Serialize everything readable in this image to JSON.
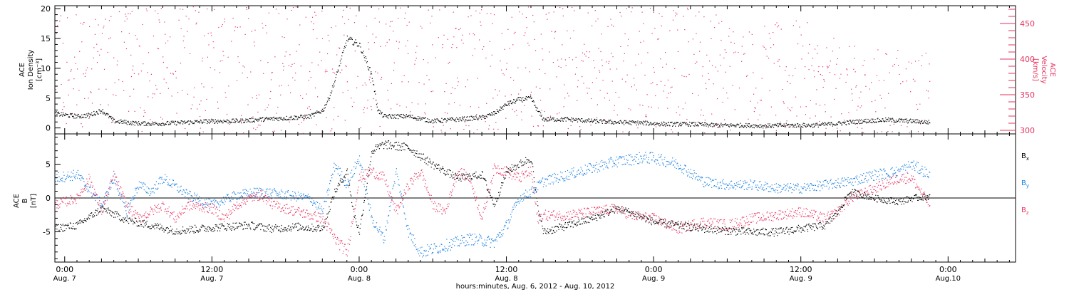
{
  "colors": {
    "black": "#000000",
    "red": "#e8325f",
    "blue": "#1a7fe0"
  },
  "xaxis": {
    "tick_labels": [
      {
        "time": "0:00",
        "date": "Aug. 7",
        "hours": 0
      },
      {
        "time": "12:00",
        "date": "Aug. 7",
        "hours": 12
      },
      {
        "time": "0:00",
        "date": "Aug. 8",
        "hours": 24
      },
      {
        "time": "12:00",
        "date": "Aug. 8",
        "hours": 36
      },
      {
        "time": "0:00",
        "date": "Aug. 9",
        "hours": 48
      },
      {
        "time": "12:00",
        "date": "Aug. 9",
        "hours": 60
      },
      {
        "time": "0:00",
        "date": "Aug.10",
        "hours": 72
      }
    ],
    "title": "hours:minutes, Aug. 6, 2012 - Aug. 10, 2012",
    "range_hours": [
      -0.8,
      77.5
    ]
  },
  "top_panel": {
    "left_label": {
      "line1": "ACE",
      "line2": "Ion Density",
      "line3": "[cm⁻³]"
    },
    "right_label": {
      "line1": "ACE",
      "line2": "Velocity",
      "line3": "[km/s]"
    },
    "left_ticks": [
      "0",
      "5",
      "10",
      "15",
      "20"
    ],
    "right_ticks": [
      "300",
      "350",
      "400",
      "450"
    ]
  },
  "bottom_panel": {
    "left_label": {
      "line1": "ACE",
      "line2": "B",
      "line3": "[nT]"
    },
    "left_ticks": [
      "-5",
      "0",
      "5"
    ],
    "legend": [
      {
        "sym": "B",
        "sub": "x",
        "color": "#000000"
      },
      {
        "sym": "B",
        "sub": "y",
        "color": "#1a7fe0"
      },
      {
        "sym": "B",
        "sub": "z",
        "color": "#e8325f"
      }
    ]
  },
  "chart_data": [
    {
      "type": "scatter",
      "x_unit": "hours since 2012-08-07 00:00 UT",
      "xlim": [
        -0.8,
        77.5
      ],
      "ylim_left": [
        -1,
        20.5
      ],
      "ylim_right": [
        295,
        475
      ],
      "series": [
        {
          "name": "Ion Density",
          "axis": "left",
          "color": "#000000",
          "points": [
            [
              -1,
              2.5
            ],
            [
              1,
              2
            ],
            [
              2,
              2.2
            ],
            [
              3,
              3
            ],
            [
              4,
              1.2
            ],
            [
              6,
              0.8
            ],
            [
              8,
              0.8
            ],
            [
              10,
              1
            ],
            [
              12,
              1.2
            ],
            [
              14,
              1.2
            ],
            [
              16,
              1.5
            ],
            [
              18,
              1.7
            ],
            [
              20,
              2
            ],
            [
              21,
              3
            ],
            [
              21.5,
              5
            ],
            [
              22,
              8
            ],
            [
              23,
              15
            ],
            [
              24,
              14
            ],
            [
              25,
              9
            ],
            [
              25.5,
              3
            ],
            [
              26,
              2
            ],
            [
              28,
              2
            ],
            [
              30,
              1.2
            ],
            [
              32,
              1.5
            ],
            [
              34,
              1.8
            ],
            [
              35,
              2.5
            ],
            [
              36,
              4
            ],
            [
              37,
              4.8
            ],
            [
              38,
              5
            ],
            [
              38.5,
              3
            ],
            [
              39,
              1.5
            ],
            [
              41,
              1.5
            ],
            [
              43,
              1.2
            ],
            [
              45,
              1
            ],
            [
              47,
              0.9
            ],
            [
              49,
              0.7
            ],
            [
              51,
              0.7
            ],
            [
              53,
              0.5
            ],
            [
              55,
              0.5
            ],
            [
              57,
              0.4
            ],
            [
              59,
              0.5
            ],
            [
              61,
              0.5
            ],
            [
              63,
              0.8
            ],
            [
              65,
              1.2
            ],
            [
              67,
              1.4
            ],
            [
              69,
              1.2
            ],
            [
              70.5,
              1
            ]
          ]
        },
        {
          "name": "Velocity",
          "axis": "right",
          "color": "#e8325f",
          "points": [
            [
              -1,
              405
            ],
            [
              1,
              402
            ],
            [
              3,
              410
            ],
            [
              5,
              418
            ],
            [
              6,
              425
            ],
            [
              8,
              405
            ],
            [
              10,
              402
            ],
            [
              12,
              404
            ],
            [
              14,
              405
            ],
            [
              16,
              402
            ],
            [
              18,
              396
            ],
            [
              20,
              400
            ],
            [
              21,
              410
            ],
            [
              22,
              425
            ],
            [
              23,
              440
            ],
            [
              24,
              430
            ],
            [
              24.5,
              400
            ],
            [
              25,
              385
            ],
            [
              26,
              378
            ],
            [
              27,
              420
            ],
            [
              28,
              445
            ],
            [
              30,
              425
            ],
            [
              32,
              420
            ],
            [
              34,
              410
            ],
            [
              36,
              402
            ],
            [
              37,
              398
            ],
            [
              38,
              402
            ],
            [
              38.5,
              380
            ],
            [
              40,
              375
            ],
            [
              42,
              370
            ],
            [
              44,
              380
            ],
            [
              46,
              390
            ],
            [
              48,
              380
            ],
            [
              50,
              372
            ],
            [
              52,
              368
            ],
            [
              54,
              355
            ],
            [
              56,
              345
            ],
            [
              58,
              348
            ],
            [
              60,
              352
            ],
            [
              61,
              343
            ],
            [
              62,
              335
            ],
            [
              64,
              323
            ],
            [
              66,
              320
            ],
            [
              68,
              320
            ],
            [
              69,
              322
            ],
            [
              70.5,
              318
            ]
          ]
        }
      ]
    },
    {
      "type": "scatter",
      "x_unit": "hours since 2012-08-07 00:00 UT",
      "xlim": [
        -0.8,
        77.5
      ],
      "ylim": [
        -9.5,
        9.5
      ],
      "legend": [
        "Bx",
        "By",
        "Bz"
      ],
      "series": [
        {
          "name": "Bx",
          "color": "#000000",
          "points": [
            [
              -1,
              -4.5
            ],
            [
              1,
              -4
            ],
            [
              3,
              -1.5
            ],
            [
              5,
              -3.2
            ],
            [
              7,
              -4
            ],
            [
              9,
              -4.8
            ],
            [
              11,
              -4.5
            ],
            [
              13,
              -4.2
            ],
            [
              15,
              -4
            ],
            [
              17,
              -4.5
            ],
            [
              19,
              -4.2
            ],
            [
              21,
              -4.5
            ],
            [
              22,
              1
            ],
            [
              23,
              4
            ],
            [
              23.5,
              -2
            ],
            [
              24,
              -5
            ],
            [
              25,
              7
            ],
            [
              26,
              8
            ],
            [
              28,
              7.5
            ],
            [
              30,
              5
            ],
            [
              32,
              3
            ],
            [
              34,
              3.5
            ],
            [
              35,
              -1
            ],
            [
              36,
              4
            ],
            [
              37,
              5
            ],
            [
              38,
              6
            ],
            [
              38.5,
              -1
            ],
            [
              39,
              -5
            ],
            [
              41,
              -4
            ],
            [
              43,
              -3
            ],
            [
              45,
              -1.5
            ],
            [
              46,
              -2
            ],
            [
              48,
              -3.5
            ],
            [
              50,
              -4
            ],
            [
              52,
              -4.5
            ],
            [
              54,
              -4.8
            ],
            [
              56,
              -5
            ],
            [
              58,
              -5
            ],
            [
              60,
              -4.5
            ],
            [
              62,
              -4
            ],
            [
              63,
              -2
            ],
            [
              64,
              1
            ],
            [
              66,
              0
            ],
            [
              68,
              -0.5
            ],
            [
              69,
              0
            ],
            [
              70.5,
              0.3
            ]
          ]
        },
        {
          "name": "By",
          "color": "#1a7fe0",
          "points": [
            [
              -1,
              3
            ],
            [
              1,
              3.5
            ],
            [
              3,
              -1
            ],
            [
              4,
              3
            ],
            [
              5,
              -2
            ],
            [
              6,
              2
            ],
            [
              7,
              1
            ],
            [
              8,
              3
            ],
            [
              10,
              0.5
            ],
            [
              12,
              -1
            ],
            [
              14,
              0.5
            ],
            [
              16,
              1
            ],
            [
              18,
              0.5
            ],
            [
              20,
              0
            ],
            [
              21,
              -2
            ],
            [
              22,
              5
            ],
            [
              23,
              2
            ],
            [
              24,
              6
            ],
            [
              25,
              -3
            ],
            [
              26,
              -6
            ],
            [
              27,
              4
            ],
            [
              28,
              -5
            ],
            [
              29,
              -8
            ],
            [
              31,
              -7
            ],
            [
              33,
              -6
            ],
            [
              35,
              -6.5
            ],
            [
              36,
              -4
            ],
            [
              37,
              0
            ],
            [
              38,
              1
            ],
            [
              39,
              2.5
            ],
            [
              41,
              3.5
            ],
            [
              43,
              4.5
            ],
            [
              45,
              5.5
            ],
            [
              47,
              6
            ],
            [
              48,
              6
            ],
            [
              50,
              5
            ],
            [
              52,
              2.5
            ],
            [
              54,
              2
            ],
            [
              56,
              2
            ],
            [
              58,
              1.5
            ],
            [
              60,
              1.5
            ],
            [
              62,
              2
            ],
            [
              64,
              2.5
            ],
            [
              66,
              3.5
            ],
            [
              68,
              4
            ],
            [
              69,
              5
            ],
            [
              70.5,
              3.5
            ]
          ]
        },
        {
          "name": "Bz",
          "color": "#e8325f",
          "points": [
            [
              -1,
              -1
            ],
            [
              1,
              0
            ],
            [
              2,
              3
            ],
            [
              3,
              -2
            ],
            [
              4,
              3.5
            ],
            [
              5,
              -1
            ],
            [
              6,
              -3
            ],
            [
              7,
              -2
            ],
            [
              8,
              -1
            ],
            [
              9,
              -3
            ],
            [
              10,
              -1
            ],
            [
              12,
              -1.5
            ],
            [
              13,
              -3
            ],
            [
              14,
              -1
            ],
            [
              15,
              0
            ],
            [
              16,
              0.5
            ],
            [
              17,
              -1
            ],
            [
              19,
              -2
            ],
            [
              21,
              -3
            ],
            [
              22,
              -6
            ],
            [
              23,
              -8
            ],
            [
              24,
              3
            ],
            [
              25,
              4
            ],
            [
              26,
              3
            ],
            [
              27,
              -2
            ],
            [
              28,
              2
            ],
            [
              29,
              4
            ],
            [
              30,
              -1
            ],
            [
              31,
              -2
            ],
            [
              32,
              4
            ],
            [
              33,
              3
            ],
            [
              34,
              -3
            ],
            [
              35,
              4.5
            ],
            [
              36,
              4
            ],
            [
              37,
              3
            ],
            [
              38,
              4
            ],
            [
              38.5,
              -3
            ],
            [
              39,
              -2.5
            ],
            [
              41,
              -2.5
            ],
            [
              43,
              -2
            ],
            [
              45,
              -1.5
            ],
            [
              46,
              -2.5
            ],
            [
              48,
              -3
            ],
            [
              50,
              -4.5
            ],
            [
              52,
              -3.5
            ],
            [
              54,
              -4
            ],
            [
              56,
              -3
            ],
            [
              58,
              -2.5
            ],
            [
              60,
              -2
            ],
            [
              62,
              -3
            ],
            [
              63,
              -2
            ],
            [
              64,
              0
            ],
            [
              66,
              1.5
            ],
            [
              68,
              3
            ],
            [
              69,
              3
            ],
            [
              70.5,
              -1
            ]
          ]
        }
      ]
    }
  ]
}
